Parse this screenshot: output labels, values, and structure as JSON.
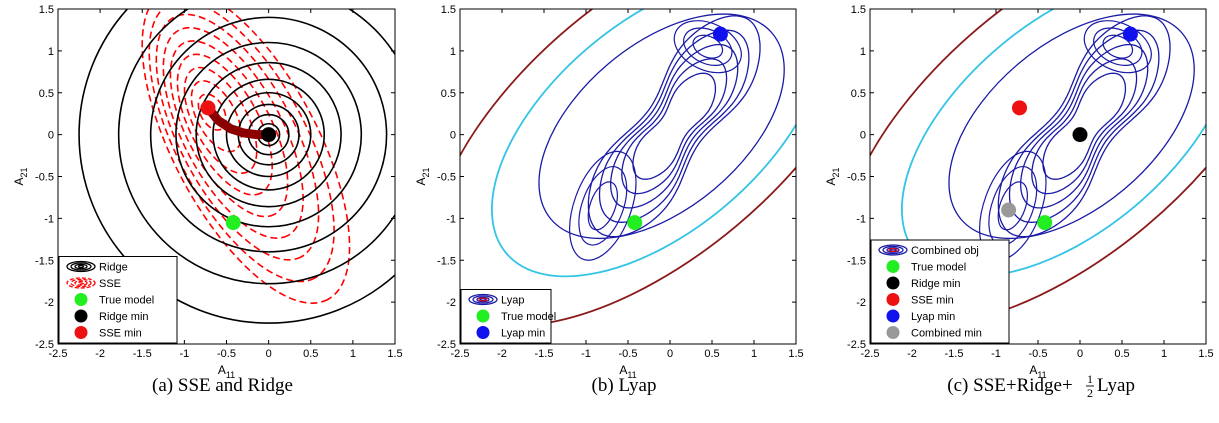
{
  "panels": [
    {
      "caption": "(a)  SSE and Ridge",
      "chart_data": {
        "type": "contour",
        "xlabel": "A11",
        "ylabel": "A21",
        "xlim": [
          -2.5,
          1.5
        ],
        "ylim": [
          -2.5,
          1.5
        ],
        "xticks": [
          "-2.5",
          "-2",
          "-1.5",
          "-1",
          "-0.5",
          "0",
          "0.5",
          "1",
          "1.5"
        ],
        "yticks": [
          "1.5",
          "1",
          "0.5",
          "0",
          "-0.5",
          "-1",
          "-1.5",
          "-2",
          "-2.5"
        ],
        "legend": "bottom-left",
        "series": [
          {
            "name": "Ridge",
            "kind": "contour",
            "color": "#000000"
          },
          {
            "name": "SSE",
            "kind": "contour",
            "color": "#ff0000"
          },
          {
            "name": "True model",
            "kind": "point",
            "color": "#22ee22",
            "x": -0.42,
            "y": -1.05
          },
          {
            "name": "Ridge min",
            "kind": "point",
            "color": "#000000",
            "x": 0.0,
            "y": 0.0
          },
          {
            "name": "SSE min",
            "kind": "point",
            "color": "#ee1111",
            "x": -0.72,
            "y": 0.32
          }
        ],
        "regularization_path": {
          "color": "#8b0000",
          "points": [
            [
              -0.72,
              0.32
            ],
            [
              -0.6,
              0.17
            ],
            [
              -0.45,
              0.07
            ],
            [
              -0.3,
              0.02
            ],
            [
              -0.15,
              0.0
            ],
            [
              0.0,
              0.0
            ]
          ]
        }
      }
    },
    {
      "caption": "(b)  Lyap",
      "chart_data": {
        "type": "contour",
        "xlabel": "A11",
        "ylabel": "A21",
        "xlim": [
          -2.5,
          1.5
        ],
        "ylim": [
          -2.5,
          1.5
        ],
        "xticks": [
          "-2.5",
          "-2",
          "-1.5",
          "-1",
          "-0.5",
          "0",
          "0.5",
          "1",
          "1.5"
        ],
        "yticks": [
          "1.5",
          "1",
          "0.5",
          "0",
          "-0.5",
          "-1",
          "-1.5",
          "-2",
          "-2.5"
        ],
        "legend": "bottom-left",
        "series": [
          {
            "name": "Lyap",
            "kind": "contour",
            "color": "#1a1aa6"
          },
          {
            "name": "True model",
            "kind": "point",
            "color": "#22ee22",
            "x": -0.42,
            "y": -1.05
          },
          {
            "name": "Lyap min",
            "kind": "point",
            "color": "#1111ee",
            "x": 0.6,
            "y": 1.2
          }
        ]
      }
    },
    {
      "caption": "(c)  SSE+Ridge+",
      "caption_frac_num": "1",
      "caption_frac_den": "2",
      "caption_tail": "Lyap",
      "chart_data": {
        "type": "contour",
        "xlabel": "A11",
        "ylabel": "A21",
        "xlim": [
          -2.5,
          1.5
        ],
        "ylim": [
          -2.5,
          1.5
        ],
        "xticks": [
          "-2.5",
          "-2",
          "-1.5",
          "-1",
          "-0.5",
          "0",
          "0.5",
          "1",
          "1.5"
        ],
        "yticks": [
          "1.5",
          "1",
          "0.5",
          "0",
          "-0.5",
          "-1",
          "-1.5",
          "-2",
          "-2.5"
        ],
        "legend": "bottom-left",
        "series": [
          {
            "name": "Combined obj",
            "kind": "contour",
            "color": "#1a1aa6"
          },
          {
            "name": "True model",
            "kind": "point",
            "color": "#22ee22",
            "x": -0.42,
            "y": -1.05
          },
          {
            "name": "Ridge min",
            "kind": "point",
            "color": "#000000",
            "x": 0.0,
            "y": 0.0
          },
          {
            "name": "SSE min",
            "kind": "point",
            "color": "#ee1111",
            "x": -0.72,
            "y": 0.32
          },
          {
            "name": "Lyap min",
            "kind": "point",
            "color": "#1111ee",
            "x": 0.6,
            "y": 1.2
          },
          {
            "name": "Combined min",
            "kind": "point",
            "color": "#999999",
            "x": -0.85,
            "y": -0.9
          }
        ]
      }
    }
  ],
  "colors": {
    "ridge": "#000000",
    "sse": "#ff0000",
    "lyap_inner": "#1a1aa6",
    "lyap_mid": "#1f8fd0",
    "lyap_cyan": "#33c4e6",
    "lyap_outer": "#8b1a1a",
    "path": "#8b0000"
  }
}
